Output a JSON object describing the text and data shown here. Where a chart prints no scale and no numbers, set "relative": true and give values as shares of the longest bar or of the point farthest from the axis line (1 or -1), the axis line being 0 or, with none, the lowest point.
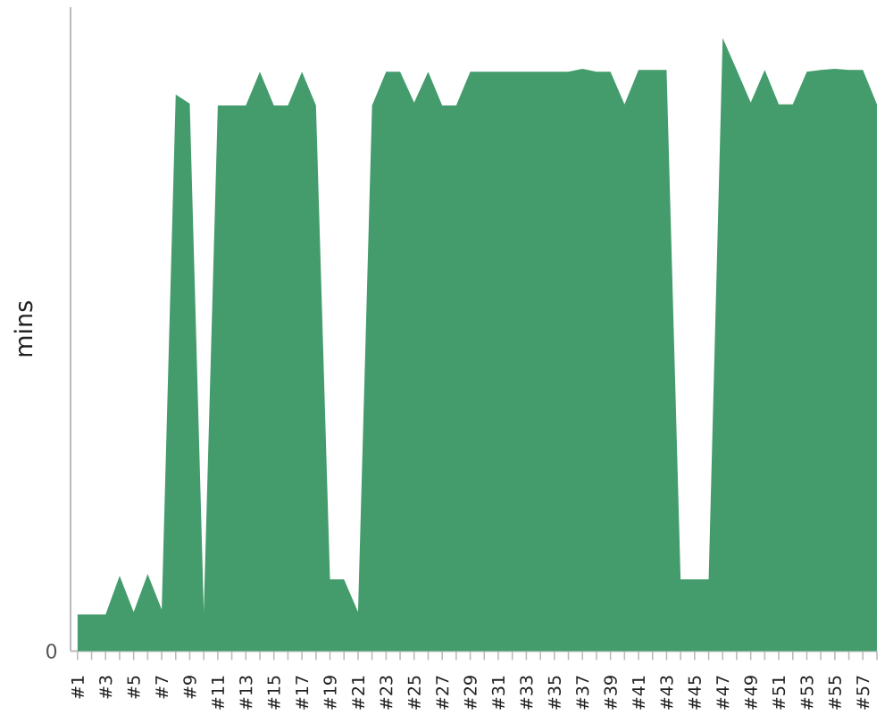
{
  "chart_data": {
    "type": "area",
    "relative": true,
    "color": "#449c6c",
    "ylabel": "mins",
    "annotations": [
      "0"
    ],
    "categories": [
      "#1",
      null,
      "#3",
      null,
      "#5",
      null,
      "#7",
      null,
      "#9",
      null,
      "#11",
      null,
      "#13",
      null,
      "#15",
      null,
      "#17",
      null,
      "#19",
      null,
      "#21",
      null,
      "#23",
      null,
      "#25",
      null,
      "#27",
      null,
      "#29",
      null,
      "#31",
      null,
      "#33",
      null,
      "#35",
      null,
      "#37",
      null,
      "#39",
      null,
      "#41",
      null,
      "#43",
      null,
      "#45",
      null,
      "#47",
      null,
      "#49",
      null,
      "#51",
      null,
      "#53",
      null,
      "#55",
      null,
      "#57",
      null
    ],
    "values": [
      0.06,
      0.06,
      0.06,
      0.123,
      0.064,
      0.126,
      0.068,
      0.908,
      0.893,
      0.065,
      0.89,
      0.89,
      0.89,
      0.945,
      0.89,
      0.89,
      0.945,
      0.89,
      0.117,
      0.117,
      0.064,
      0.89,
      0.945,
      0.945,
      0.895,
      0.945,
      0.89,
      0.89,
      0.945,
      0.945,
      0.945,
      0.945,
      0.945,
      0.945,
      0.945,
      0.945,
      0.95,
      0.945,
      0.945,
      0.892,
      0.948,
      0.948,
      0.948,
      0.117,
      0.117,
      0.117,
      1,
      0.948,
      0.895,
      0.948,
      0.892,
      0.892,
      0.945,
      0.948,
      0.95,
      0.948,
      0.948,
      0.892
    ]
  }
}
